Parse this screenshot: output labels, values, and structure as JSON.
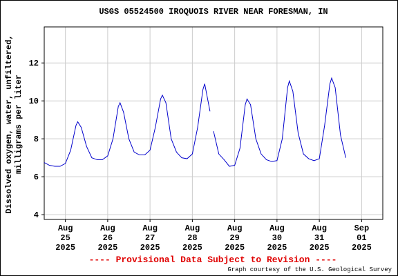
{
  "chart_data": {
    "type": "line",
    "title": "USGS 05524500 IROQUOIS RIVER NEAR FORESMAN, IN",
    "ylabel": [
      "Dissolved oxygen, water, unfiltered,",
      "milligrams per liter"
    ],
    "footer": "---- Provisional Data Subject to Revision ----",
    "credit": "Graph courtesy of the U.S. Geological Survey",
    "xlim": [
      "2025-08-24 12:00",
      "2025-09-01 12:00"
    ],
    "xticks": [
      {
        "value": "2025-08-25 00:00",
        "label": "Aug 25 2025"
      },
      {
        "value": "2025-08-26 00:00",
        "label": "Aug 26 2025"
      },
      {
        "value": "2025-08-27 00:00",
        "label": "Aug 27 2025"
      },
      {
        "value": "2025-08-28 00:00",
        "label": "Aug 28 2025"
      },
      {
        "value": "2025-08-29 00:00",
        "label": "Aug 29 2025"
      },
      {
        "value": "2025-08-30 00:00",
        "label": "Aug 30 2025"
      },
      {
        "value": "2025-08-31 00:00",
        "label": "Aug 31 2025"
      },
      {
        "value": "2025-09-01 00:00",
        "label": "Sep 01 2025"
      }
    ],
    "ylim": [
      3.75,
      13.9
    ],
    "yticks": [
      4,
      6,
      8,
      10,
      12
    ],
    "grid": true,
    "series": [
      {
        "name": "Dissolved oxygen",
        "color": "#0000cc",
        "x": [
          "2025-08-24 12:00",
          "2025-08-24 15:00",
          "2025-08-24 18:00",
          "2025-08-24 21:00",
          "2025-08-25 00:00",
          "2025-08-25 03:00",
          "2025-08-25 06:00",
          "2025-08-25 07:00",
          "2025-08-25 09:00",
          "2025-08-25 12:00",
          "2025-08-25 15:00",
          "2025-08-25 18:00",
          "2025-08-25 21:00",
          "2025-08-26 00:00",
          "2025-08-26 03:00",
          "2025-08-26 06:00",
          "2025-08-26 07:00",
          "2025-08-26 09:00",
          "2025-08-26 12:00",
          "2025-08-26 15:00",
          "2025-08-26 18:00",
          "2025-08-26 21:00",
          "2025-08-27 00:00",
          "2025-08-27 03:00",
          "2025-08-27 06:00",
          "2025-08-27 07:00",
          "2025-08-27 09:00",
          "2025-08-27 12:00",
          "2025-08-27 15:00",
          "2025-08-27 18:00",
          "2025-08-27 21:00",
          "2025-08-28 00:00",
          "2025-08-28 03:00",
          "2025-08-28 06:00",
          "2025-08-28 07:00",
          "2025-08-28 10:00",
          "2025-08-28 11:00",
          "2025-08-28 12:00",
          "2025-08-28 15:00",
          "2025-08-28 18:00",
          "2025-08-28 21:00",
          "2025-08-29 00:00",
          "2025-08-29 03:00",
          "2025-08-29 06:00",
          "2025-08-29 07:00",
          "2025-08-29 09:00",
          "2025-08-29 12:00",
          "2025-08-29 15:00",
          "2025-08-29 18:00",
          "2025-08-29 21:00",
          "2025-08-30 00:00",
          "2025-08-30 03:00",
          "2025-08-30 06:00",
          "2025-08-30 07:00",
          "2025-08-30 09:00",
          "2025-08-30 12:00",
          "2025-08-30 15:00",
          "2025-08-30 18:00",
          "2025-08-30 21:00",
          "2025-08-31 00:00",
          "2025-08-31 03:00",
          "2025-08-31 06:00",
          "2025-08-31 07:00",
          "2025-08-31 09:00",
          "2025-08-31 12:00",
          "2025-08-31 15:00"
        ],
        "values": [
          6.75,
          6.6,
          6.55,
          6.55,
          6.7,
          7.4,
          8.7,
          8.9,
          8.6,
          7.6,
          7.0,
          6.9,
          6.9,
          7.1,
          8.0,
          9.7,
          9.9,
          9.4,
          8.0,
          7.3,
          7.15,
          7.15,
          7.4,
          8.6,
          10.1,
          10.3,
          9.9,
          8.0,
          7.3,
          7.0,
          6.95,
          7.2,
          8.6,
          10.6,
          10.9,
          9.45,
          null,
          8.4,
          7.2,
          6.9,
          6.55,
          6.6,
          7.5,
          9.8,
          10.1,
          9.8,
          8.0,
          7.2,
          6.9,
          6.8,
          6.85,
          8.0,
          10.7,
          11.05,
          10.5,
          8.3,
          7.2,
          6.95,
          6.85,
          6.95,
          8.7,
          10.9,
          11.2,
          10.7,
          8.2,
          7.0
        ]
      }
    ]
  }
}
